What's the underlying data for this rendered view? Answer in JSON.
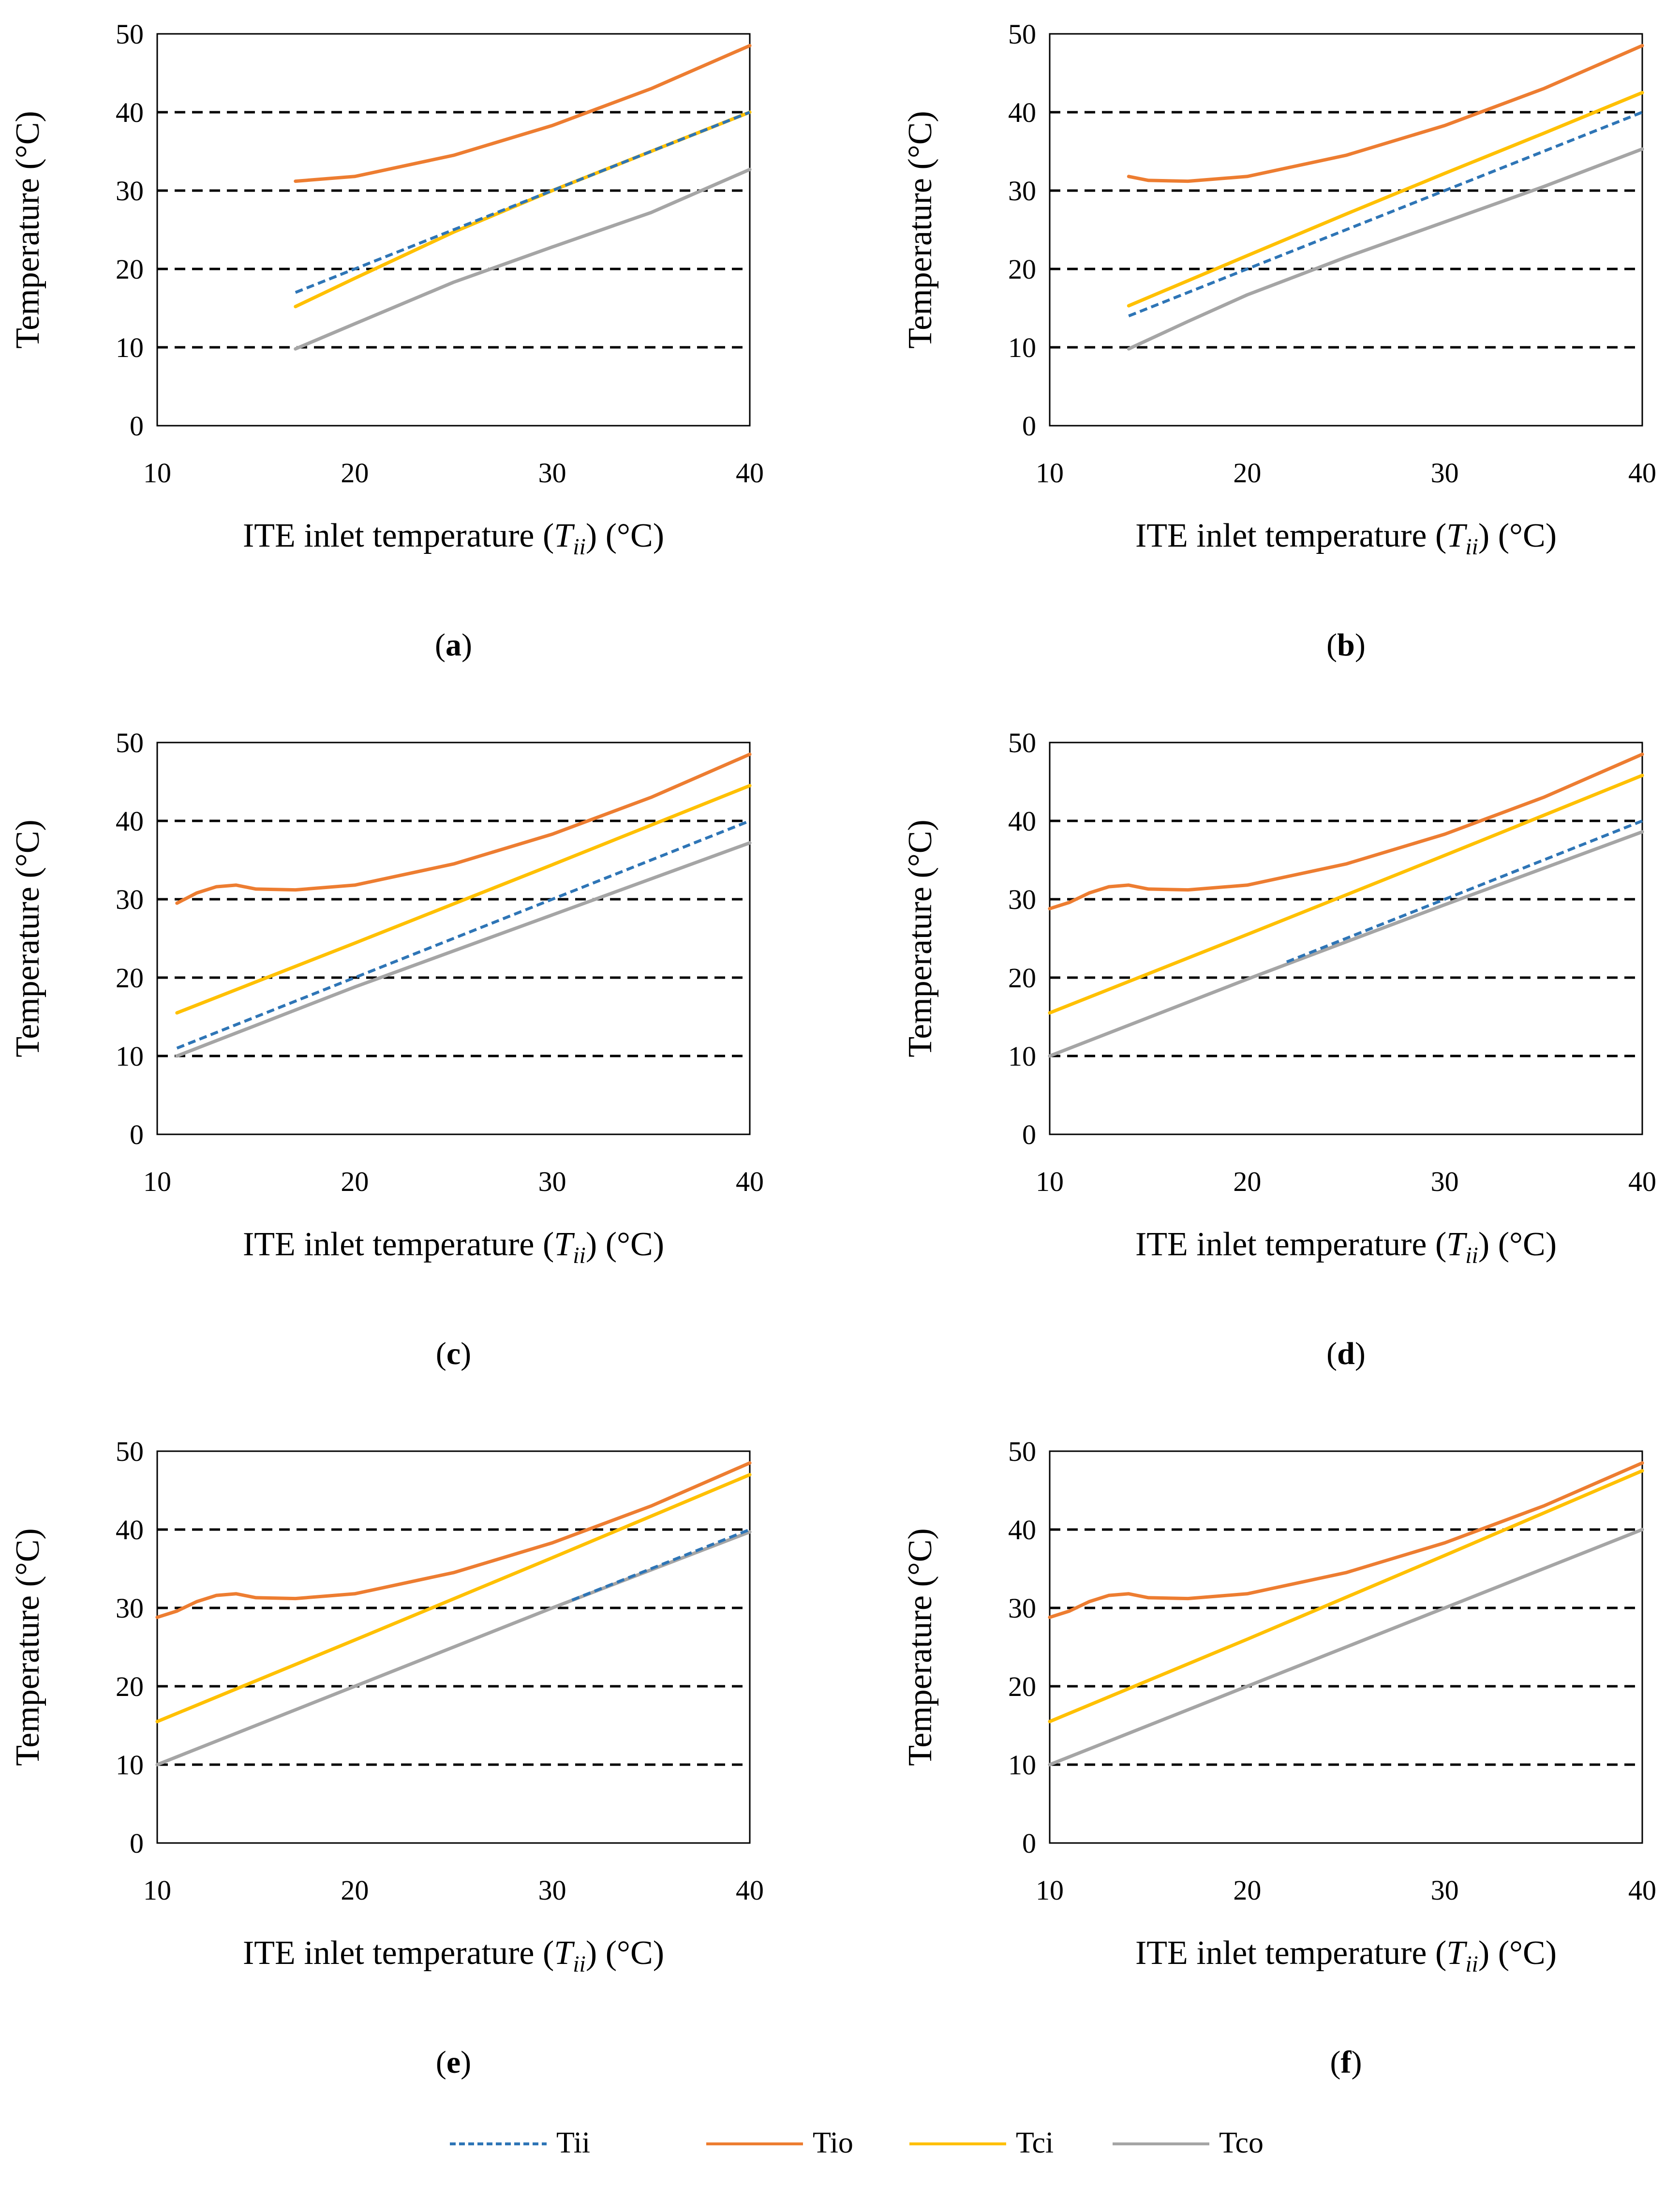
{
  "colors": {
    "Tii": "#2e75b6",
    "Tio": "#ed7d31",
    "Tci": "#ffc000",
    "Tco": "#a5a5a5",
    "grid": "#000000",
    "axis": "#000000"
  },
  "legend": {
    "placement": "bottom-center",
    "items": [
      {
        "key": "Tii",
        "label": "Tii",
        "style": "dashed"
      },
      {
        "key": "Tio",
        "label": "Tio",
        "style": "solid"
      },
      {
        "key": "Tci",
        "label": "Tci",
        "style": "solid"
      },
      {
        "key": "Tco",
        "label": "Tco",
        "style": "solid"
      }
    ]
  },
  "chart_data": [
    {
      "type": "line",
      "label": "a",
      "xlabel": {
        "pre": "ITE inlet temperature (",
        "sym": "T",
        "sub": "ii",
        "post": ") (°C)"
      },
      "ylabel": "Temperature (°C)",
      "xlim": [
        10,
        40
      ],
      "ylim": [
        0,
        50
      ],
      "xticks": [
        10,
        20,
        30,
        40
      ],
      "yticks": [
        0,
        10,
        20,
        30,
        40,
        50
      ],
      "grid": {
        "horizontal": [
          10,
          20,
          30,
          40
        ],
        "style": "dashed"
      },
      "series": [
        {
          "name": "Tii",
          "points": [
            [
              17,
              17
            ],
            [
              40,
              40
            ]
          ]
        },
        {
          "name": "Tio",
          "points": [
            [
              17,
              31.2
            ],
            [
              20,
              31.8
            ],
            [
              25,
              34.5
            ],
            [
              30,
              38.3
            ],
            [
              35,
              43
            ],
            [
              40,
              48.5
            ]
          ]
        },
        {
          "name": "Tci",
          "points": [
            [
              17,
              15.2
            ],
            [
              20,
              18.8
            ],
            [
              25,
              24.7
            ],
            [
              30,
              30
            ],
            [
              35,
              35
            ],
            [
              40,
              40
            ]
          ]
        },
        {
          "name": "Tco",
          "points": [
            [
              17,
              9.8
            ],
            [
              20,
              13
            ],
            [
              25,
              18.3
            ],
            [
              30,
              22.8
            ],
            [
              35,
              27.2
            ],
            [
              40,
              32.7
            ]
          ]
        }
      ]
    },
    {
      "type": "line",
      "label": "b",
      "xlabel": {
        "pre": "ITE inlet temperature (",
        "sym": "T",
        "sub": "ii",
        "post": ") (°C)"
      },
      "ylabel": "Temperature (°C)",
      "xlim": [
        10,
        40
      ],
      "ylim": [
        0,
        50
      ],
      "xticks": [
        10,
        20,
        30,
        40
      ],
      "yticks": [
        0,
        10,
        20,
        30,
        40,
        50
      ],
      "grid": {
        "horizontal": [
          10,
          20,
          30,
          40
        ],
        "style": "dashed"
      },
      "series": [
        {
          "name": "Tii",
          "points": [
            [
              14,
              14
            ],
            [
              40,
              40
            ]
          ]
        },
        {
          "name": "Tio",
          "points": [
            [
              14,
              31.8
            ],
            [
              15,
              31.3
            ],
            [
              17,
              31.2
            ],
            [
              20,
              31.8
            ],
            [
              25,
              34.5
            ],
            [
              30,
              38.3
            ],
            [
              35,
              43
            ],
            [
              40,
              48.5
            ]
          ]
        },
        {
          "name": "Tci",
          "points": [
            [
              14,
              15.3
            ],
            [
              20,
              21.7
            ],
            [
              25,
              27
            ],
            [
              30,
              32.2
            ],
            [
              35,
              37.3
            ],
            [
              40,
              42.5
            ]
          ]
        },
        {
          "name": "Tco",
          "points": [
            [
              14,
              9.8
            ],
            [
              17,
              13.3
            ],
            [
              20,
              16.7
            ],
            [
              25,
              21.5
            ],
            [
              30,
              26
            ],
            [
              35,
              30.5
            ],
            [
              40,
              35.3
            ]
          ]
        }
      ]
    },
    {
      "type": "line",
      "label": "c",
      "xlabel": {
        "pre": "ITE inlet temperature (",
        "sym": "T",
        "sub": "ii",
        "post": ") (°C)"
      },
      "ylabel": "Temperature (°C)",
      "xlim": [
        10,
        40
      ],
      "ylim": [
        0,
        50
      ],
      "xticks": [
        10,
        20,
        30,
        40
      ],
      "yticks": [
        0,
        10,
        20,
        30,
        40,
        50
      ],
      "grid": {
        "horizontal": [
          10,
          20,
          30,
          40
        ],
        "style": "dashed"
      },
      "series": [
        {
          "name": "Tii",
          "points": [
            [
              11,
              11
            ],
            [
              40,
              40
            ]
          ]
        },
        {
          "name": "Tio",
          "points": [
            [
              11,
              29.5
            ],
            [
              12,
              30.8
            ],
            [
              13,
              31.6
            ],
            [
              14,
              31.8
            ],
            [
              15,
              31.3
            ],
            [
              17,
              31.2
            ],
            [
              20,
              31.8
            ],
            [
              25,
              34.5
            ],
            [
              30,
              38.3
            ],
            [
              35,
              43
            ],
            [
              40,
              48.5
            ]
          ]
        },
        {
          "name": "Tci",
          "points": [
            [
              11,
              15.5
            ],
            [
              20,
              24.4
            ],
            [
              30,
              34.4
            ],
            [
              40,
              44.5
            ]
          ]
        },
        {
          "name": "Tco",
          "points": [
            [
              11,
              10
            ],
            [
              20,
              18.8
            ],
            [
              30,
              28
            ],
            [
              40,
              37.2
            ]
          ]
        }
      ]
    },
    {
      "type": "line",
      "label": "d",
      "xlabel": {
        "pre": "ITE inlet temperature (",
        "sym": "T",
        "sub": "ii",
        "post": ") (°C)"
      },
      "ylabel": "Temperature (°C)",
      "xlim": [
        10,
        40
      ],
      "ylim": [
        0,
        50
      ],
      "xticks": [
        10,
        20,
        30,
        40
      ],
      "yticks": [
        0,
        10,
        20,
        30,
        40,
        50
      ],
      "grid": {
        "horizontal": [
          10,
          20,
          30,
          40
        ],
        "style": "dashed"
      },
      "series": [
        {
          "name": "Tii",
          "points": [
            [
              22,
              22
            ],
            [
              40,
              40
            ]
          ]
        },
        {
          "name": "Tio",
          "points": [
            [
              10,
              28.8
            ],
            [
              11,
              29.6
            ],
            [
              12,
              30.8
            ],
            [
              13,
              31.6
            ],
            [
              14,
              31.8
            ],
            [
              15,
              31.3
            ],
            [
              17,
              31.2
            ],
            [
              20,
              31.8
            ],
            [
              25,
              34.5
            ],
            [
              30,
              38.3
            ],
            [
              35,
              43
            ],
            [
              40,
              48.5
            ]
          ]
        },
        {
          "name": "Tci",
          "points": [
            [
              10,
              15.5
            ],
            [
              20,
              25.5
            ],
            [
              30,
              35.6
            ],
            [
              40,
              45.8
            ]
          ]
        },
        {
          "name": "Tco",
          "points": [
            [
              10,
              10
            ],
            [
              20,
              19.8
            ],
            [
              30,
              29.3
            ],
            [
              40,
              38.6
            ]
          ]
        }
      ]
    },
    {
      "type": "line",
      "label": "e",
      "xlabel": {
        "pre": "ITE inlet temperature (",
        "sym": "T",
        "sub": "ii",
        "post": ") (°C)"
      },
      "ylabel": "Temperature (°C)",
      "xlim": [
        10,
        40
      ],
      "ylim": [
        0,
        50
      ],
      "xticks": [
        10,
        20,
        30,
        40
      ],
      "yticks": [
        0,
        10,
        20,
        30,
        40,
        50
      ],
      "grid": {
        "horizontal": [
          10,
          20,
          30,
          40
        ],
        "style": "dashed"
      },
      "series": [
        {
          "name": "Tii",
          "points": [
            [
              31,
              31
            ],
            [
              40,
              40
            ]
          ]
        },
        {
          "name": "Tio",
          "points": [
            [
              10,
              28.8
            ],
            [
              11,
              29.6
            ],
            [
              12,
              30.8
            ],
            [
              13,
              31.6
            ],
            [
              14,
              31.8
            ],
            [
              15,
              31.3
            ],
            [
              17,
              31.2
            ],
            [
              20,
              31.8
            ],
            [
              25,
              34.5
            ],
            [
              30,
              38.3
            ],
            [
              35,
              43
            ],
            [
              40,
              48.5
            ]
          ]
        },
        {
          "name": "Tci",
          "points": [
            [
              10,
              15.5
            ],
            [
              20,
              25.9
            ],
            [
              30,
              36.4
            ],
            [
              40,
              47
            ]
          ]
        },
        {
          "name": "Tco",
          "points": [
            [
              10,
              10
            ],
            [
              20,
              20
            ],
            [
              30,
              30
            ],
            [
              40,
              39.7
            ]
          ]
        }
      ]
    },
    {
      "type": "line",
      "label": "f",
      "xlabel": {
        "pre": "ITE inlet temperature (",
        "sym": "T",
        "sub": "ii",
        "post": ") (°C)"
      },
      "ylabel": "Temperature (°C)",
      "xlim": [
        10,
        40
      ],
      "ylim": [
        0,
        50
      ],
      "xticks": [
        10,
        20,
        30,
        40
      ],
      "yticks": [
        0,
        10,
        20,
        30,
        40,
        50
      ],
      "grid": {
        "horizontal": [
          10,
          20,
          30,
          40
        ],
        "style": "dashed"
      },
      "series": [
        {
          "name": "Tio",
          "points": [
            [
              10,
              28.8
            ],
            [
              11,
              29.6
            ],
            [
              12,
              30.8
            ],
            [
              13,
              31.6
            ],
            [
              14,
              31.8
            ],
            [
              15,
              31.3
            ],
            [
              17,
              31.2
            ],
            [
              20,
              31.8
            ],
            [
              25,
              34.5
            ],
            [
              30,
              38.3
            ],
            [
              35,
              43
            ],
            [
              40,
              48.5
            ]
          ]
        },
        {
          "name": "Tci",
          "points": [
            [
              10,
              15.5
            ],
            [
              20,
              26
            ],
            [
              30,
              36.7
            ],
            [
              40,
              47.5
            ]
          ]
        },
        {
          "name": "Tco",
          "points": [
            [
              10,
              10
            ],
            [
              20,
              20
            ],
            [
              30,
              30
            ],
            [
              40,
              40
            ]
          ]
        }
      ]
    }
  ]
}
